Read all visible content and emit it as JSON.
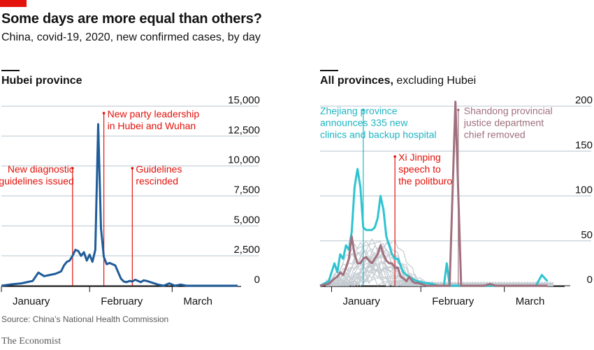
{
  "header": {
    "title": "Some days are more equal than others?",
    "subtitle": "China, covid-19, 2020, new confirmed cases, by day"
  },
  "footer": {
    "source": "Source: China’s National Health Commission",
    "brand": "The Economist"
  },
  "colors": {
    "brand_red": "#e3120b",
    "hubei_line": "#1f5c99",
    "zhejiang_line": "#2ec4d0",
    "shandong_line": "#a0707e",
    "other_provinces": "#c5ccd2",
    "annotation": "#e3120b",
    "annotation_teal": "#1fb5c3",
    "annotation_mauve": "#a0707e",
    "grid": "#b7c6cf"
  },
  "chart_data": [
    {
      "type": "line",
      "title_bold": "Hubei province",
      "title_rest": "",
      "ylim": [
        0,
        15000
      ],
      "yticks": [
        {
          "value": 0,
          "label": "0"
        },
        {
          "value": 2500,
          "label": "2,500"
        },
        {
          "value": 5000,
          "label": "5,000"
        },
        {
          "value": 7500,
          "label": "7,500"
        },
        {
          "value": 10000,
          "label": "10,000"
        },
        {
          "value": 12500,
          "label": "12,500"
        },
        {
          "value": 15000,
          "label": "15,000"
        }
      ],
      "xticks": [
        {
          "day": 1,
          "label": "January"
        },
        {
          "day": 32,
          "label": "February"
        },
        {
          "day": 61,
          "label": "March"
        }
      ],
      "grid": true,
      "series": [
        {
          "key": "hubei",
          "x": [
            1,
            4,
            8,
            12,
            14,
            16,
            18,
            20,
            21,
            22,
            23,
            24,
            25,
            26,
            27,
            28,
            29,
            30,
            31,
            32,
            33,
            34,
            35,
            36,
            37,
            38,
            39,
            41,
            43,
            44,
            45,
            46,
            47,
            48,
            49,
            50,
            51,
            52,
            54,
            56,
            58,
            60,
            62,
            64,
            66,
            70,
            72,
            74,
            76,
            80,
            84
          ],
          "y": [
            0,
            100,
            200,
            400,
            1100,
            800,
            900,
            1000,
            1100,
            1200,
            1700,
            2000,
            2100,
            2500,
            3000,
            2900,
            2500,
            2800,
            2100,
            2600,
            2000,
            3000,
            13500,
            4800,
            2400,
            1800,
            1900,
            1700,
            600,
            350,
            300,
            400,
            350,
            500,
            400,
            300,
            450,
            400,
            250,
            100,
            0,
            200,
            0,
            100,
            0,
            0,
            0,
            0,
            0,
            0,
            0
          ]
        }
      ],
      "annotations": [
        {
          "day": 26,
          "lines": [
            "New diagnostic",
            "guidelines issued"
          ],
          "label_value": 9000
        },
        {
          "day": 37,
          "lines": [
            "New party leadership",
            "in Hubei and Wuhan"
          ],
          "label_value": 13600
        },
        {
          "day": 47,
          "lines": [
            "Guidelines",
            "rescinded"
          ],
          "label_value": 9000
        }
      ]
    },
    {
      "type": "line",
      "title_bold": "All provinces,",
      "title_rest": " excluding Hubei",
      "ylim": [
        0,
        200
      ],
      "yticks": [
        {
          "value": 0,
          "label": "0"
        },
        {
          "value": 50,
          "label": "50"
        },
        {
          "value": 100,
          "label": "100"
        },
        {
          "value": 150,
          "label": "150"
        },
        {
          "value": 200,
          "label": "200"
        }
      ],
      "xticks": [
        {
          "day": 5,
          "label": "January"
        },
        {
          "day": 36,
          "label": "February"
        },
        {
          "day": 65,
          "label": "March"
        }
      ],
      "grid": true,
      "series": [
        {
          "key": "zhejiang",
          "x": [
            1,
            4,
            6,
            7,
            8,
            9,
            10,
            11,
            12,
            13,
            14,
            15,
            16,
            17,
            18,
            19,
            20,
            21,
            22,
            23,
            24,
            25,
            26,
            27,
            28,
            29,
            30,
            31,
            32,
            33,
            34,
            35,
            36,
            38,
            40,
            42,
            44,
            45,
            46,
            48,
            50,
            52,
            54,
            56,
            58,
            60,
            62,
            64,
            66,
            68,
            70,
            72,
            74,
            76,
            78,
            80
          ],
          "y": [
            0,
            5,
            25,
            15,
            35,
            30,
            45,
            40,
            60,
            110,
            130,
            110,
            65,
            62,
            62,
            62,
            65,
            75,
            100,
            85,
            55,
            45,
            35,
            30,
            30,
            22,
            15,
            12,
            10,
            8,
            6,
            5,
            4,
            3,
            2,
            0,
            0,
            25,
            0,
            0,
            0,
            0,
            0,
            0,
            0,
            0,
            0,
            0,
            0,
            0,
            0,
            0,
            0,
            0,
            12,
            5
          ]
        },
        {
          "key": "shandong",
          "x": [
            1,
            4,
            6,
            7,
            8,
            9,
            10,
            11,
            12,
            13,
            14,
            15,
            16,
            17,
            18,
            19,
            20,
            21,
            22,
            23,
            24,
            25,
            26,
            27,
            28,
            29,
            30,
            31,
            32,
            33,
            34,
            35,
            36,
            38,
            40,
            42,
            44,
            45,
            46,
            48,
            50,
            52,
            54,
            56,
            58,
            60,
            62,
            64,
            66,
            68,
            70,
            72,
            74,
            76,
            78,
            80
          ],
          "y": [
            0,
            2,
            8,
            10,
            15,
            12,
            20,
            30,
            55,
            35,
            25,
            25,
            30,
            32,
            28,
            25,
            30,
            35,
            45,
            35,
            28,
            25,
            25,
            20,
            20,
            10,
            8,
            5,
            10,
            5,
            3,
            3,
            2,
            0,
            0,
            0,
            0,
            0,
            0,
            205,
            0,
            0,
            0,
            0,
            0,
            2,
            0,
            0,
            0,
            0,
            0,
            0,
            0,
            0,
            0,
            0
          ]
        }
      ],
      "annotations": [
        {
          "day": 16,
          "lines": [
            "Zhejiang province",
            "announces 335 new",
            "clinics and backup hospital"
          ],
          "label_value": 185,
          "color_key": "annotation_teal"
        },
        {
          "day": 27,
          "lines": [
            "Xi Jinping",
            "speech to",
            "the politburo"
          ],
          "label_value": 133,
          "color_key": "annotation"
        },
        {
          "day": 49,
          "lines": [
            "Shandong provincial",
            "justice department",
            "chief removed"
          ],
          "label_value": 185,
          "color_key": "annotation_mauve"
        }
      ]
    }
  ]
}
